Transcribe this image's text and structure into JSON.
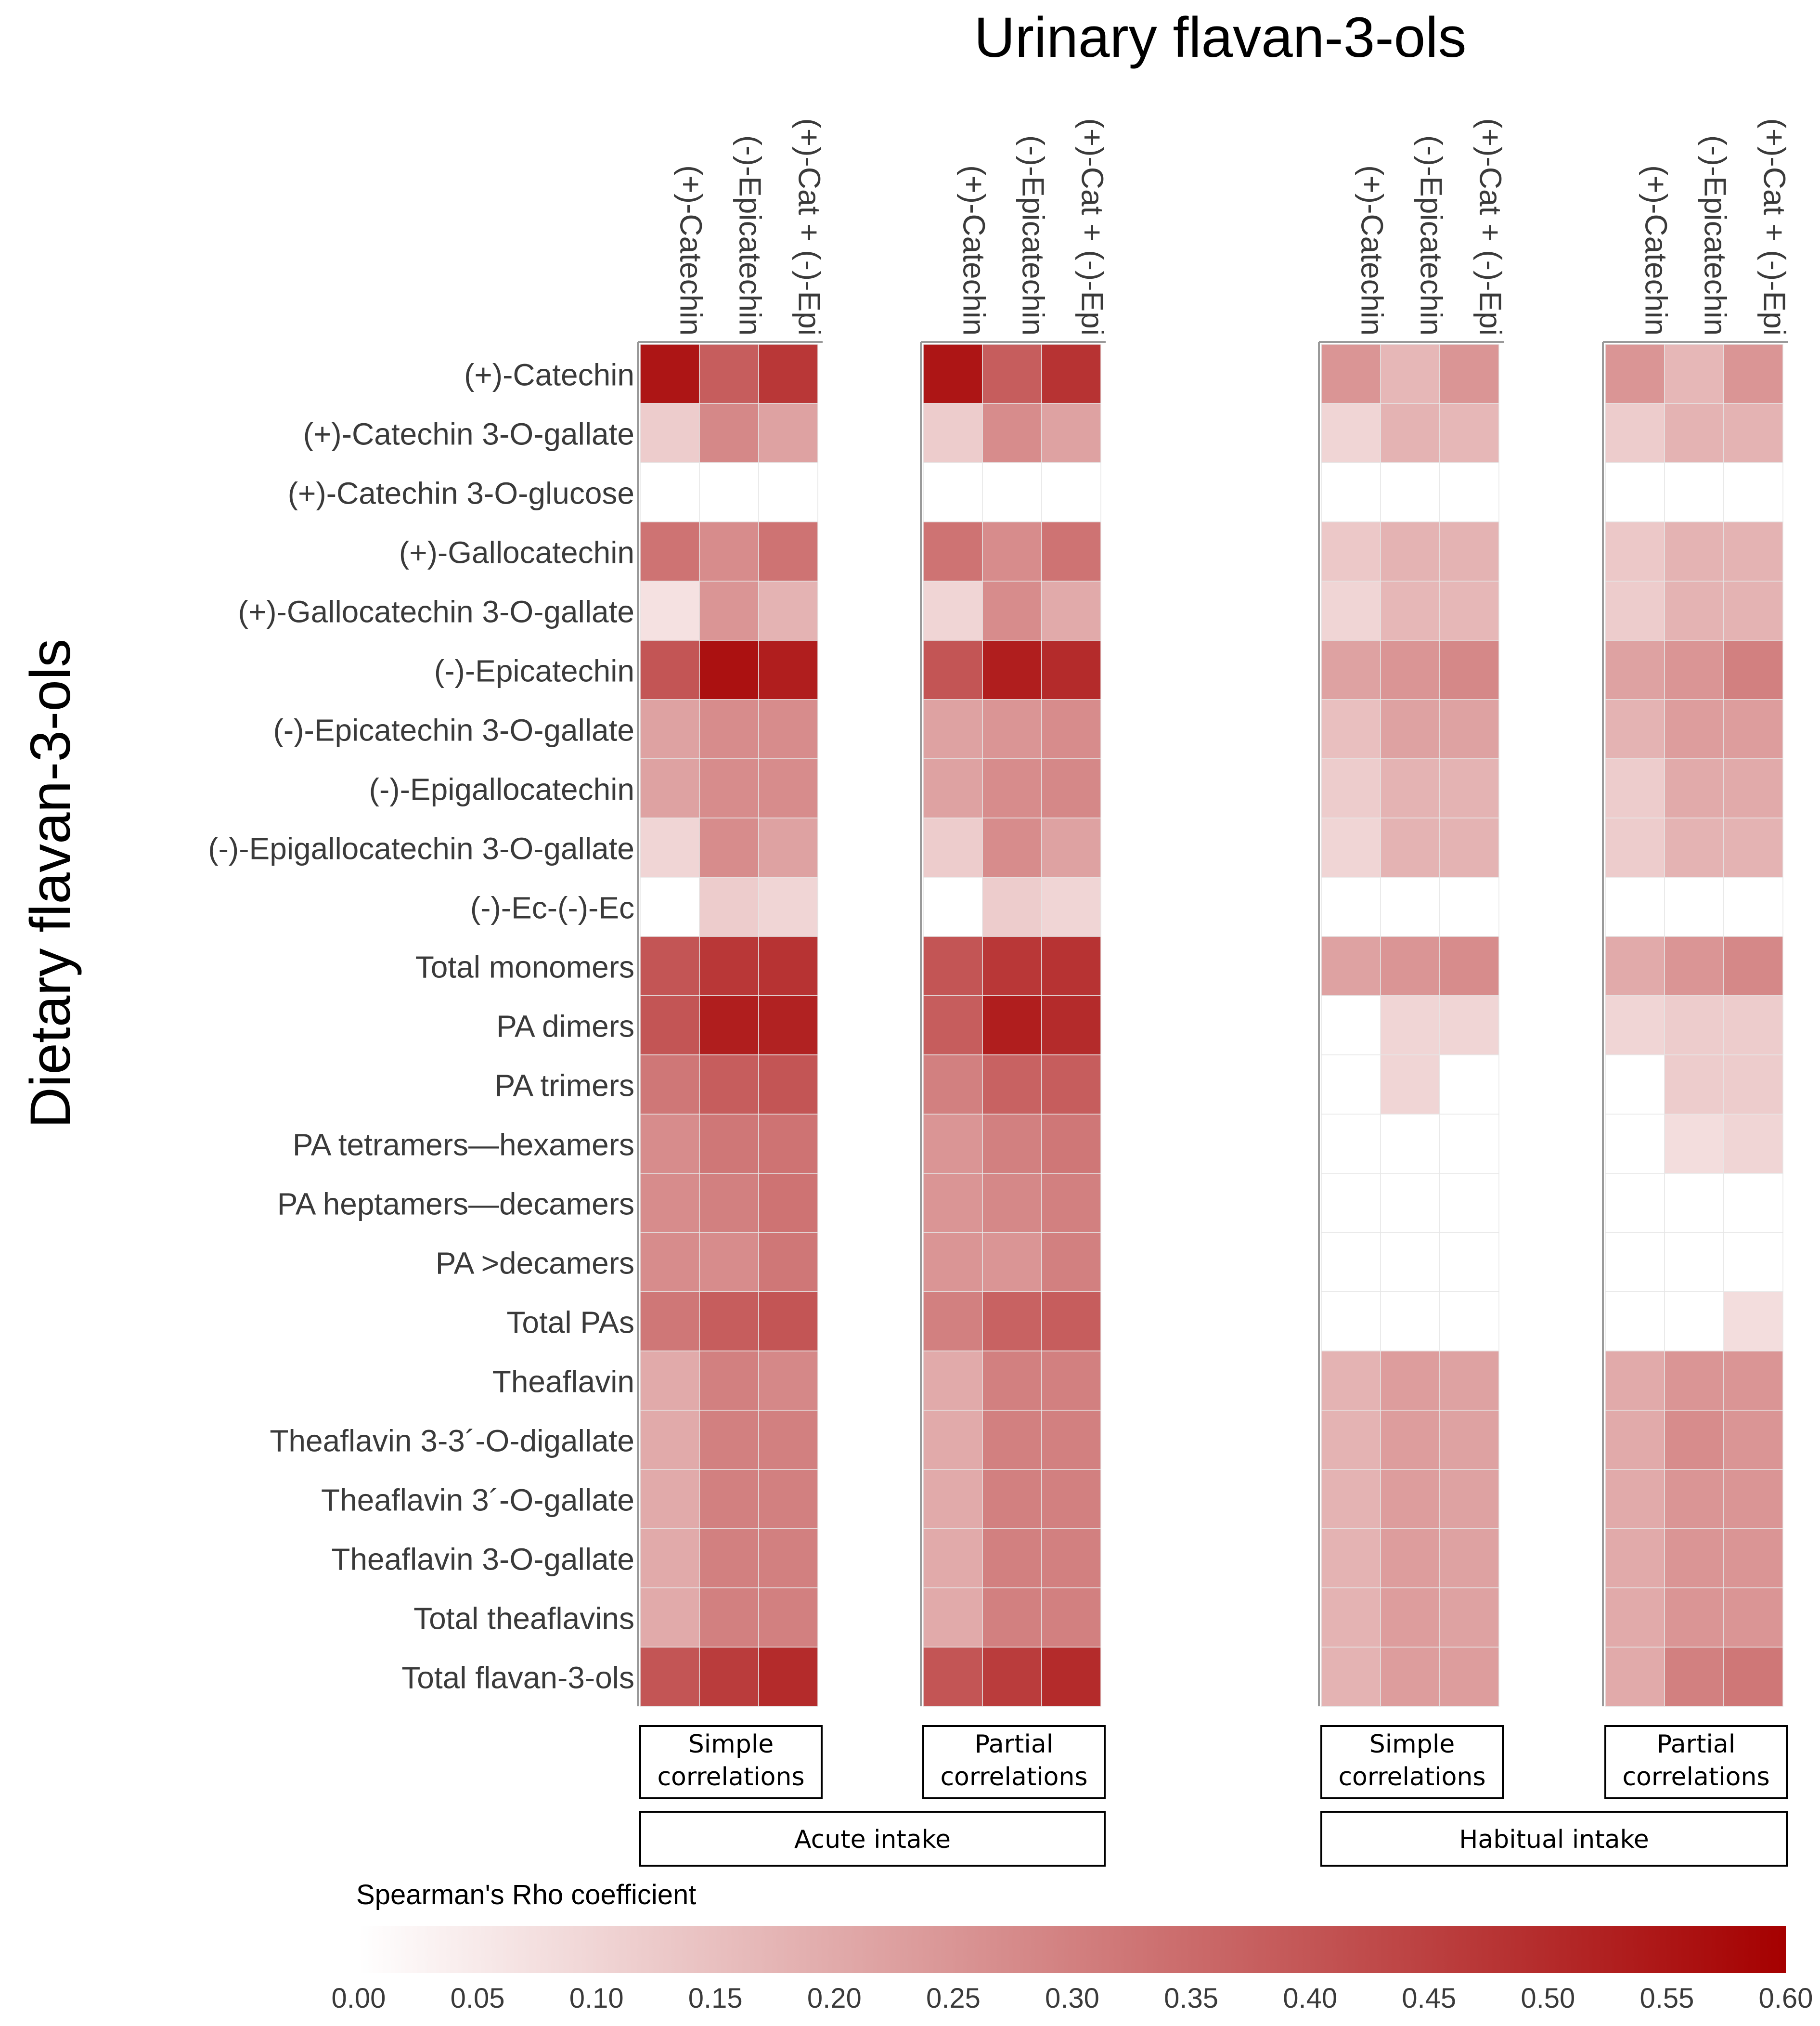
{
  "chart_data": {
    "type": "heatmap",
    "title": "Urinary flavan-3-ols",
    "ylabel": "Dietary flavan-3-ols",
    "columns": [
      "(+)-Catechin",
      "(-)-Epicatechin",
      "(+)-Cat + (-)-Epi"
    ],
    "rows": [
      "(+)-Catechin",
      "(+)-Catechin 3-O-gallate",
      "(+)-Catechin 3-O-glucose",
      "(+)-Gallocatechin",
      "(+)-Gallocatechin 3-O-gallate",
      "(-)-Epicatechin",
      "(-)-Epicatechin 3-O-gallate",
      "(-)-Epigallocatechin",
      "(-)-Epigallocatechin 3-O-gallate",
      "(-)-Ec-(-)-Ec",
      "Total monomers",
      "PA dimers",
      "PA trimers",
      "PA tetramers—hexamers",
      "PA heptamers—decamers",
      "PA >decamers",
      "Total PAs",
      "Theaflavin",
      "Theaflavin 3-3´-O-digallate",
      "Theaflavin 3´-O-gallate",
      "Theaflavin 3-O-gallate",
      "Total theaflavins",
      "Total flavan-3-ols"
    ],
    "panels": [
      {
        "name": "Simple correlations",
        "group": "Acute intake",
        "values": [
          [
            0.55,
            0.38,
            0.47
          ],
          [
            0.12,
            0.28,
            0.22
          ],
          [
            0,
            0,
            0
          ],
          [
            0.33,
            0.27,
            0.33
          ],
          [
            0.07,
            0.25,
            0.18
          ],
          [
            0.4,
            0.56,
            0.53
          ],
          [
            0.22,
            0.27,
            0.27
          ],
          [
            0.22,
            0.27,
            0.27
          ],
          [
            0.1,
            0.27,
            0.22
          ],
          [
            0,
            0.12,
            0.1
          ],
          [
            0.4,
            0.47,
            0.48
          ],
          [
            0.4,
            0.53,
            0.52
          ],
          [
            0.32,
            0.38,
            0.4
          ],
          [
            0.27,
            0.32,
            0.33
          ],
          [
            0.27,
            0.3,
            0.33
          ],
          [
            0.27,
            0.27,
            0.32
          ],
          [
            0.32,
            0.38,
            0.4
          ],
          [
            0.2,
            0.3,
            0.28
          ],
          [
            0.2,
            0.3,
            0.3
          ],
          [
            0.2,
            0.3,
            0.3
          ],
          [
            0.2,
            0.3,
            0.3
          ],
          [
            0.2,
            0.3,
            0.3
          ],
          [
            0.4,
            0.46,
            0.5
          ]
        ]
      },
      {
        "name": "Partial correlations",
        "group": "Acute intake",
        "values": [
          [
            0.55,
            0.38,
            0.48
          ],
          [
            0.12,
            0.27,
            0.22
          ],
          [
            0,
            0,
            0
          ],
          [
            0.33,
            0.27,
            0.33
          ],
          [
            0.1,
            0.27,
            0.2
          ],
          [
            0.4,
            0.53,
            0.5
          ],
          [
            0.22,
            0.25,
            0.27
          ],
          [
            0.22,
            0.27,
            0.28
          ],
          [
            0.12,
            0.27,
            0.22
          ],
          [
            0,
            0.12,
            0.1
          ],
          [
            0.4,
            0.47,
            0.48
          ],
          [
            0.38,
            0.53,
            0.5
          ],
          [
            0.3,
            0.37,
            0.38
          ],
          [
            0.25,
            0.3,
            0.32
          ],
          [
            0.25,
            0.28,
            0.3
          ],
          [
            0.25,
            0.25,
            0.3
          ],
          [
            0.3,
            0.37,
            0.38
          ],
          [
            0.2,
            0.3,
            0.3
          ],
          [
            0.2,
            0.3,
            0.3
          ],
          [
            0.2,
            0.3,
            0.3
          ],
          [
            0.2,
            0.3,
            0.3
          ],
          [
            0.2,
            0.3,
            0.3
          ],
          [
            0.4,
            0.46,
            0.5
          ]
        ]
      },
      {
        "name": "Simple correlations",
        "group": "Habitual intake",
        "values": [
          [
            0.25,
            0.17,
            0.25
          ],
          [
            0.1,
            0.18,
            0.17
          ],
          [
            0,
            0,
            0
          ],
          [
            0.13,
            0.18,
            0.18
          ],
          [
            0.1,
            0.17,
            0.17
          ],
          [
            0.22,
            0.25,
            0.28
          ],
          [
            0.15,
            0.22,
            0.22
          ],
          [
            0.12,
            0.18,
            0.18
          ],
          [
            0.1,
            0.18,
            0.18
          ],
          [
            0,
            0,
            0
          ],
          [
            0.22,
            0.25,
            0.27
          ],
          [
            0,
            0.1,
            0.1
          ],
          [
            0,
            0.1,
            0
          ],
          [
            0,
            0,
            0
          ],
          [
            0,
            0,
            0
          ],
          [
            0,
            0,
            0
          ],
          [
            0,
            0,
            0
          ],
          [
            0.18,
            0.23,
            0.22
          ],
          [
            0.18,
            0.23,
            0.22
          ],
          [
            0.18,
            0.23,
            0.22
          ],
          [
            0.18,
            0.23,
            0.22
          ],
          [
            0.18,
            0.23,
            0.22
          ],
          [
            0.18,
            0.23,
            0.23
          ]
        ]
      },
      {
        "name": "Partial correlations",
        "group": "Habitual intake",
        "values": [
          [
            0.25,
            0.17,
            0.25
          ],
          [
            0.12,
            0.18,
            0.18
          ],
          [
            0,
            0,
            0
          ],
          [
            0.13,
            0.18,
            0.18
          ],
          [
            0.12,
            0.18,
            0.18
          ],
          [
            0.22,
            0.25,
            0.3
          ],
          [
            0.18,
            0.23,
            0.23
          ],
          [
            0.12,
            0.2,
            0.2
          ],
          [
            0.12,
            0.18,
            0.18
          ],
          [
            0,
            0,
            0
          ],
          [
            0.2,
            0.25,
            0.28
          ],
          [
            0.1,
            0.12,
            0.12
          ],
          [
            0,
            0.12,
            0.12
          ],
          [
            0,
            0.08,
            0.1
          ],
          [
            0,
            0,
            0
          ],
          [
            0,
            0,
            0
          ],
          [
            0,
            0,
            0.08
          ],
          [
            0.2,
            0.25,
            0.25
          ],
          [
            0.2,
            0.27,
            0.25
          ],
          [
            0.2,
            0.25,
            0.25
          ],
          [
            0.2,
            0.25,
            0.25
          ],
          [
            0.2,
            0.25,
            0.25
          ],
          [
            0.2,
            0.3,
            0.32
          ]
        ]
      }
    ],
    "group_labels": [
      "Acute intake",
      "Habitual intake"
    ],
    "panel_label_lines": {
      "Simple correlations": [
        "Simple",
        "correlations"
      ],
      "Partial correlations": [
        "Partial",
        "correlations"
      ]
    },
    "colorbar": {
      "title": "Spearman's Rho coefficient",
      "min": 0.0,
      "max": 0.6,
      "ticks": [
        "0.00",
        "0.05",
        "0.10",
        "0.15",
        "0.20",
        "0.25",
        "0.30",
        "0.35",
        "0.40",
        "0.45",
        "0.50",
        "0.55",
        "0.60"
      ],
      "color_low": "#ffffff",
      "color_high": "#a50000"
    }
  }
}
